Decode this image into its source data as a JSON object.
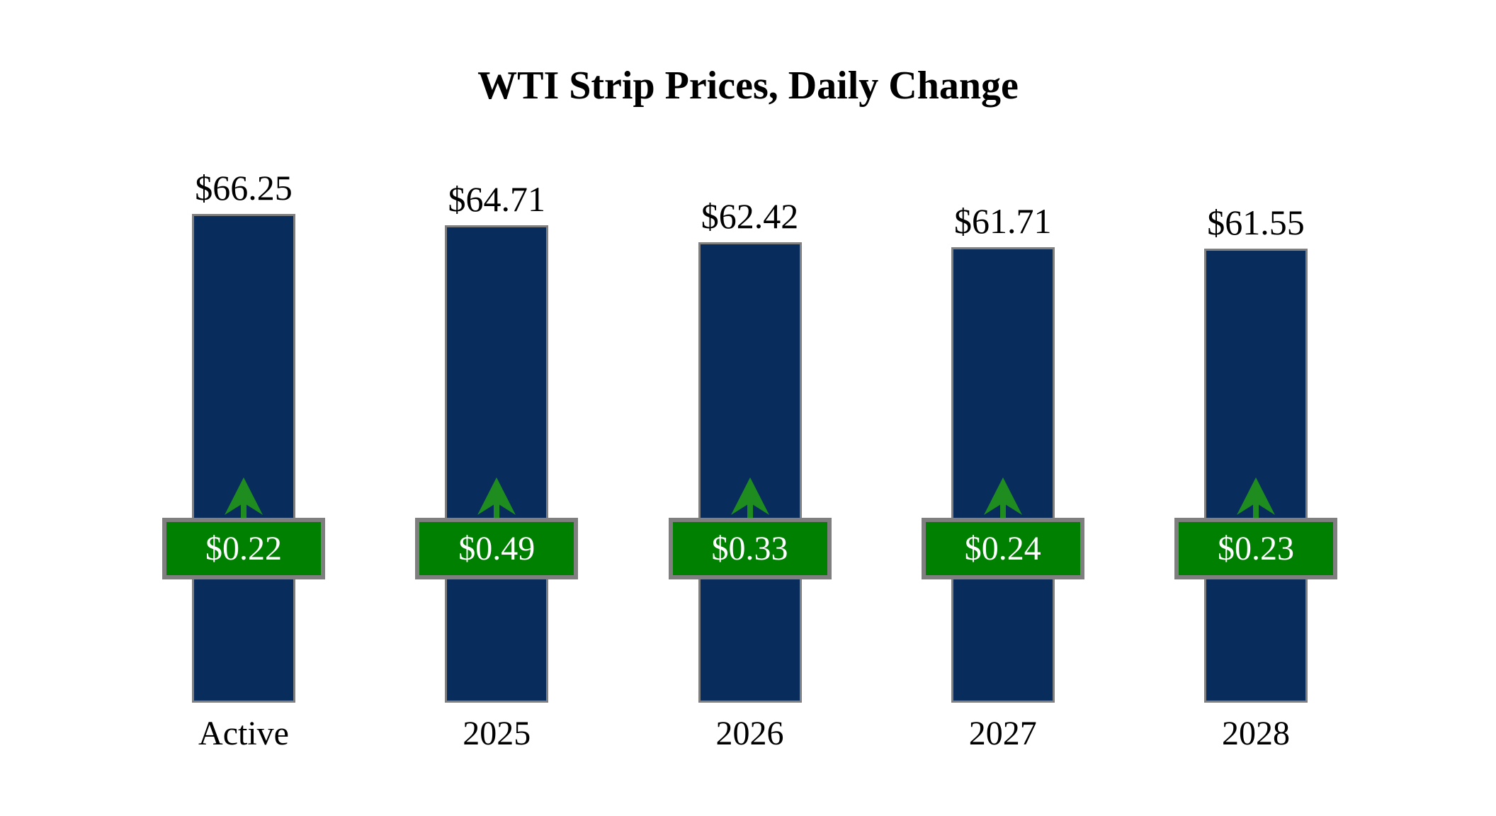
{
  "title": "WTI Strip Prices, Daily Change",
  "chart_data": {
    "type": "bar",
    "title": "WTI Strip Prices, Daily Change",
    "categories": [
      "Active",
      "2025",
      "2026",
      "2027",
      "2028"
    ],
    "series": [
      {
        "name": "WTI Strip Price",
        "values": [
          66.25,
          64.71,
          62.42,
          61.71,
          61.55
        ],
        "labels": [
          "$66.25",
          "$64.71",
          "$62.42",
          "$61.71",
          "$61.55"
        ]
      },
      {
        "name": "Daily Change",
        "values": [
          0.22,
          0.49,
          0.33,
          0.24,
          0.23
        ],
        "labels": [
          "$0.22",
          "$0.49",
          "$0.33",
          "$0.24",
          "$0.23"
        ],
        "direction": "up"
      }
    ],
    "ylim": [
      0,
      66.25
    ],
    "grid": false,
    "legend": "none",
    "axes_shown": false,
    "colors": {
      "bar_fill": "#082d5c",
      "bar_border": "#808080",
      "badge_fill": "#008000",
      "badge_border": "#7f7f7f",
      "badge_text": "#ffffff",
      "arrow": "#1e8c1e",
      "label_text": "#000000",
      "background": "#ffffff"
    }
  }
}
